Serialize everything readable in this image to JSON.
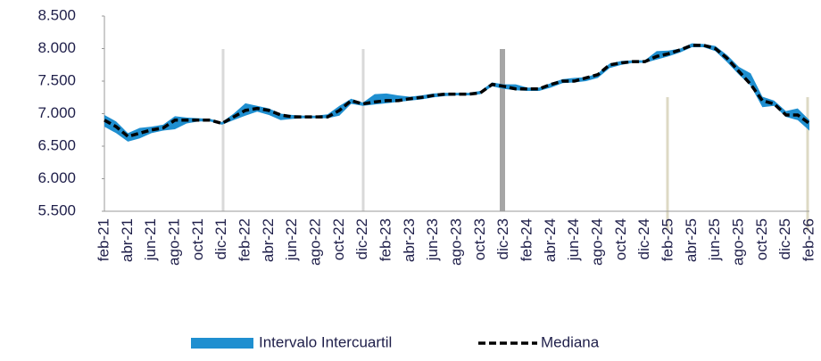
{
  "chart_data": {
    "type": "band_line",
    "categories": [
      "feb-21",
      null,
      "abr-21",
      null,
      "jun-21",
      null,
      "ago-21",
      null,
      "oct-21",
      null,
      "dic-21",
      null,
      "feb-22",
      null,
      "abr-22",
      null,
      "jun-22",
      null,
      "ago-22",
      null,
      "oct-22",
      null,
      "dic-22",
      null,
      "feb-23",
      null,
      "abr-23",
      null,
      "jun-23",
      null,
      "ago-23",
      null,
      "oct-23",
      null,
      "dic-23",
      null,
      "feb-24",
      null,
      "abr-24",
      null,
      "jun-24",
      null,
      "ago-24",
      null,
      "oct-24",
      null,
      "dic-24",
      null,
      "feb-25",
      null,
      "abr-25",
      null,
      "jun-25",
      null,
      "ago-25",
      null,
      "oct-25",
      null,
      "dic-25",
      null,
      "feb-26"
    ],
    "series": [
      {
        "name": "Intervalo Intercuartil",
        "color": "#1f8fd0",
        "upper": [
          6980,
          6880,
          6700,
          6780,
          6800,
          6830,
          6960,
          6940,
          6930,
          6920,
          6870,
          7000,
          7160,
          7120,
          7080,
          7000,
          6980,
          6970,
          6970,
          6990,
          7120,
          7230,
          7170,
          7300,
          7310,
          7280,
          7260,
          7280,
          7310,
          7320,
          7320,
          7320,
          7350,
          7480,
          7450,
          7450,
          7400,
          7400,
          7470,
          7530,
          7550,
          7560,
          7620,
          7770,
          7810,
          7820,
          7820,
          7960,
          7970,
          8000,
          8080,
          8070,
          8040,
          7900,
          7720,
          7620,
          7260,
          7200,
          7040,
          7080,
          6900
        ],
        "lower": [
          6800,
          6700,
          6570,
          6620,
          6700,
          6740,
          6760,
          6850,
          6880,
          6880,
          6830,
          6900,
          6970,
          7030,
          6980,
          6900,
          6920,
          6930,
          6930,
          6930,
          6970,
          7150,
          7120,
          7140,
          7160,
          7180,
          7200,
          7220,
          7250,
          7270,
          7280,
          7280,
          7300,
          7420,
          7380,
          7360,
          7350,
          7350,
          7400,
          7470,
          7480,
          7500,
          7550,
          7700,
          7750,
          7780,
          7780,
          7830,
          7880,
          7940,
          8020,
          8020,
          7960,
          7790,
          7600,
          7430,
          7100,
          7120,
          6950,
          6900,
          6740
        ]
      },
      {
        "name": "Mediana",
        "color": "#000000",
        "values": [
          6900,
          6800,
          6650,
          6700,
          6750,
          6780,
          6900,
          6900,
          6900,
          6900,
          6850,
          6950,
          7050,
          7080,
          7050,
          6980,
          6950,
          6950,
          6950,
          6950,
          7050,
          7200,
          7150,
          7180,
          7200,
          7200,
          7230,
          7250,
          7280,
          7300,
          7300,
          7300,
          7320,
          7450,
          7420,
          7380,
          7380,
          7380,
          7450,
          7500,
          7500,
          7550,
          7600,
          7750,
          7780,
          7800,
          7800,
          7880,
          7920,
          7980,
          8050,
          8050,
          8000,
          7850,
          7650,
          7450,
          7200,
          7150,
          6980,
          6980,
          6850
        ]
      }
    ],
    "ylim": [
      5500,
      8500
    ],
    "yticks": [
      {
        "value": 5500,
        "label": "5.500"
      },
      {
        "value": 6000,
        "label": "6.000"
      },
      {
        "value": 6500,
        "label": "6.500"
      },
      {
        "value": 7000,
        "label": "7.000"
      },
      {
        "value": 7500,
        "label": "7.500"
      },
      {
        "value": 8000,
        "label": "8.000"
      },
      {
        "value": 8500,
        "label": "8.500"
      }
    ],
    "grid": false,
    "legend": "bottom"
  }
}
